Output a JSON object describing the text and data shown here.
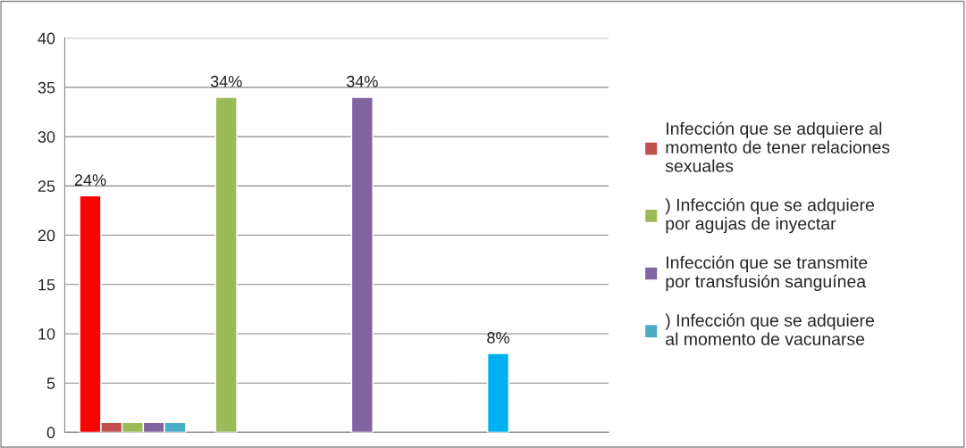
{
  "chart_data": {
    "type": "bar",
    "categories": [
      null,
      null,
      null,
      null
    ],
    "series": [
      {
        "colors": [
          "#ff0000",
          "#9bbb59",
          "#8064a2",
          "#00b0f0"
        ],
        "values": [
          24,
          34,
          34,
          8
        ],
        "value_labels": [
          "24%",
          "34%",
          "34%",
          "8%"
        ]
      },
      {
        "name": "Infección que se adquiere al momento de tener relaciones sexuales",
        "color": "#c0504d",
        "values": [
          1,
          null,
          null,
          null
        ]
      },
      {
        "name": ") Infección que se adquiere por agujas de inyectar",
        "color": "#9bbb59",
        "values": [
          1,
          null,
          null,
          null
        ]
      },
      {
        "name": "Infección que se transmite por transfusión sanguínea",
        "color": "#8064a2",
        "values": [
          1,
          null,
          null,
          null
        ]
      },
      {
        "name": ") Infección que se adquiere al momento de vacunarse",
        "color": "#4bacc6",
        "values": [
          1,
          null,
          null,
          null
        ]
      }
    ],
    "ylim": [
      0,
      40
    ],
    "yticks": [
      0,
      5,
      10,
      15,
      20,
      25,
      30,
      35,
      40
    ],
    "grid": "y",
    "legend": "right"
  }
}
